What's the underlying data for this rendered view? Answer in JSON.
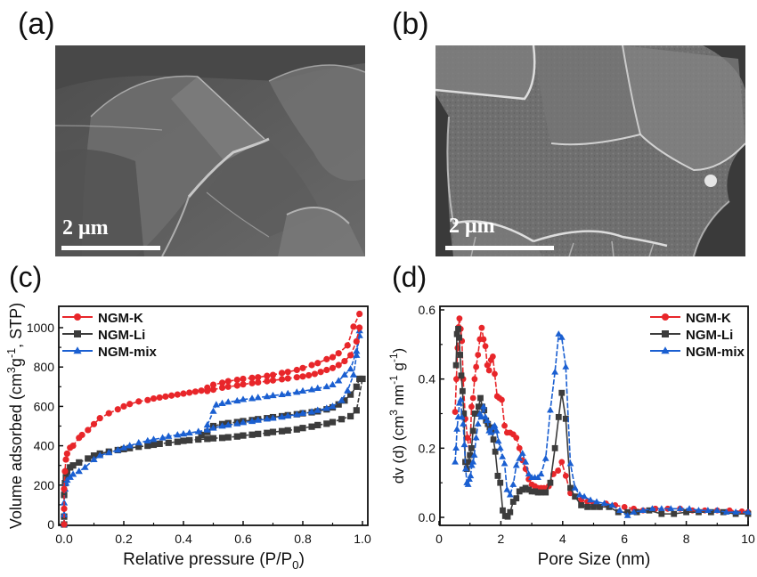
{
  "figure": {
    "panels": [
      {
        "label": "(a)",
        "type": "SEM image",
        "scale_bar": "2 μm"
      },
      {
        "label": "(b)",
        "type": "SEM image",
        "scale_bar": "2 μm"
      },
      {
        "label": "(c)",
        "type": "chart"
      },
      {
        "label": "(d)",
        "type": "chart"
      }
    ]
  },
  "colors": {
    "NGM-K": "#e8262a",
    "NGM-Li": "#3c3c3c",
    "NGM-mix": "#1a5fd1"
  },
  "chart_data": [
    {
      "panel": "(c)",
      "type": "scatter",
      "title": "",
      "xlabel": "Relative pressure (P/P0)",
      "ylabel": "Volume adsorbed (cm3g-1, STP)",
      "xlim": [
        -0.02,
        1.02
      ],
      "ylim": [
        0,
        1100
      ],
      "xticks": [
        0.0,
        0.2,
        0.4,
        0.6,
        0.8,
        1.0
      ],
      "xtick_labels": [
        "0.0",
        "0.2",
        "0.4",
        "0.6",
        "0.8",
        "1.0"
      ],
      "yticks": [
        0,
        200,
        400,
        600,
        800,
        1000
      ],
      "ytick_labels": [
        "0",
        "200",
        "400",
        "600",
        "800",
        "1000"
      ],
      "grid": false,
      "legend_position": "top-left",
      "series": [
        {
          "name": "NGM-K",
          "marker": "circle",
          "adsorption": {
            "x": [
              0.0,
              0.0,
              0.0,
              0.003,
              0.006,
              0.01,
              0.02,
              0.03,
              0.05,
              0.06,
              0.08,
              0.1,
              0.12,
              0.15,
              0.18,
              0.2,
              0.22,
              0.25,
              0.28,
              0.3,
              0.32,
              0.34,
              0.36,
              0.38,
              0.4,
              0.42,
              0.44,
              0.46,
              0.48,
              0.5,
              0.53,
              0.55,
              0.58,
              0.6,
              0.63,
              0.65,
              0.68,
              0.7,
              0.73,
              0.75,
              0.78,
              0.8,
              0.83,
              0.85,
              0.88,
              0.9,
              0.92,
              0.95,
              0.97,
              0.99
            ],
            "y": [
              0,
              80,
              180,
              270,
              330,
              360,
              390,
              400,
              440,
              455,
              480,
              510,
              540,
              565,
              585,
              600,
              612,
              625,
              632,
              640,
              645,
              650,
              655,
              660,
              665,
              670,
              675,
              680,
              695,
              710,
              720,
              728,
              735,
              740,
              745,
              748,
              755,
              760,
              770,
              775,
              785,
              795,
              810,
              820,
              840,
              850,
              870,
              910,
              1005,
              1070
            ]
          },
          "desorption": {
            "x": [
              0.99,
              0.98,
              0.96,
              0.94,
              0.92,
              0.9,
              0.88,
              0.86,
              0.84,
              0.82,
              0.8,
              0.78,
              0.75,
              0.73,
              0.7,
              0.68,
              0.65,
              0.63,
              0.6,
              0.58,
              0.55,
              0.53,
              0.5,
              0.48
            ],
            "y": [
              1000,
              930,
              860,
              830,
              810,
              795,
              785,
              775,
              765,
              758,
              752,
              748,
              742,
              738,
              732,
              728,
              722,
              718,
              712,
              706,
              700,
              695,
              685,
              678
            ]
          }
        },
        {
          "name": "NGM-Li",
          "marker": "square",
          "adsorption": {
            "x": [
              0.0,
              0.0,
              0.0,
              0.003,
              0.006,
              0.01,
              0.02,
              0.03,
              0.05,
              0.08,
              0.1,
              0.12,
              0.15,
              0.18,
              0.2,
              0.22,
              0.25,
              0.28,
              0.3,
              0.32,
              0.35,
              0.38,
              0.4,
              0.42,
              0.45,
              0.48,
              0.5,
              0.53,
              0.55,
              0.58,
              0.6,
              0.63,
              0.65,
              0.68,
              0.7,
              0.73,
              0.75,
              0.78,
              0.8,
              0.83,
              0.85,
              0.88,
              0.9,
              0.93,
              0.96,
              0.98,
              1.0
            ],
            "y": [
              0,
              40,
              150,
              210,
              240,
              270,
              290,
              300,
              315,
              335,
              350,
              360,
              370,
              378,
              383,
              388,
              395,
              400,
              405,
              410,
              415,
              420,
              425,
              428,
              432,
              435,
              438,
              440,
              443,
              447,
              452,
              456,
              460,
              465,
              470,
              474,
              478,
              483,
              490,
              497,
              505,
              512,
              520,
              535,
              550,
              580,
              740
            ]
          },
          "desorption": {
            "x": [
              0.99,
              0.98,
              0.96,
              0.94,
              0.92,
              0.9,
              0.88,
              0.85,
              0.83,
              0.8,
              0.78,
              0.75,
              0.73,
              0.7,
              0.68,
              0.65,
              0.63,
              0.6,
              0.58,
              0.55,
              0.53,
              0.5,
              0.48,
              0.46
            ],
            "y": [
              740,
              700,
              660,
              630,
              610,
              595,
              585,
              575,
              570,
              565,
              560,
              555,
              550,
              545,
              540,
              535,
              530,
              525,
              520,
              515,
              510,
              500,
              470,
              455
            ]
          }
        },
        {
          "name": "NGM-mix",
          "marker": "triangle",
          "adsorption": {
            "x": [
              0.0,
              0.0,
              0.0,
              0.003,
              0.006,
              0.01,
              0.02,
              0.03,
              0.05,
              0.07,
              0.1,
              0.12,
              0.15,
              0.18,
              0.2,
              0.22,
              0.25,
              0.28,
              0.3,
              0.33,
              0.35,
              0.38,
              0.4,
              0.42,
              0.45,
              0.48,
              0.5,
              0.53,
              0.55,
              0.58,
              0.6,
              0.63,
              0.65,
              0.68,
              0.7,
              0.73,
              0.75,
              0.78,
              0.8,
              0.83,
              0.85,
              0.88,
              0.9,
              0.93,
              0.95,
              0.97,
              0.98,
              0.99
            ],
            "y": [
              0,
              50,
              110,
              180,
              210,
              225,
              240,
              255,
              270,
              290,
              330,
              350,
              365,
              378,
              390,
              400,
              415,
              425,
              432,
              440,
              448,
              455,
              460,
              465,
              472,
              480,
              490,
              500,
              505,
              512,
              518,
              524,
              530,
              536,
              540,
              546,
              552,
              558,
              565,
              572,
              580,
              590,
              600,
              630,
              680,
              760,
              860,
              960
            ]
          },
          "desorption": {
            "x": [
              0.99,
              0.98,
              0.96,
              0.94,
              0.92,
              0.9,
              0.88,
              0.85,
              0.83,
              0.8,
              0.78,
              0.75,
              0.73,
              0.7,
              0.68,
              0.65,
              0.63,
              0.6,
              0.58,
              0.55,
              0.53,
              0.51,
              0.5,
              0.48
            ],
            "y": [
              985,
              880,
              790,
              760,
              730,
              710,
              700,
              692,
              685,
              678,
              672,
              665,
              660,
              655,
              650,
              645,
              640,
              635,
              628,
              622,
              615,
              608,
              575,
              505
            ]
          }
        }
      ]
    },
    {
      "panel": "(d)",
      "type": "line",
      "title": "",
      "xlabel": "Pore Size (nm)",
      "ylabel": "dv (d) (cm3 nm-1 g-1)",
      "xlim": [
        0,
        10
      ],
      "ylim": [
        -0.015,
        0.61
      ],
      "xticks": [
        0,
        2,
        4,
        6,
        8,
        10
      ],
      "xtick_labels": [
        "0",
        "2",
        "4",
        "6",
        "8",
        "10"
      ],
      "yticks": [
        0.0,
        0.2,
        0.4,
        0.6
      ],
      "ytick_labels": [
        "0.0",
        "0.2",
        "0.4",
        "0.6"
      ],
      "grid": false,
      "legend_position": "top-right",
      "series": [
        {
          "name": "NGM-K",
          "marker": "circle",
          "x": [
            0.52,
            0.56,
            0.6,
            0.63,
            0.66,
            0.7,
            0.74,
            0.78,
            0.85,
            0.92,
            1.0,
            1.05,
            1.1,
            1.15,
            1.2,
            1.26,
            1.32,
            1.38,
            1.44,
            1.5,
            1.56,
            1.62,
            1.68,
            1.74,
            1.8,
            1.88,
            1.95,
            2.03,
            2.12,
            2.2,
            2.3,
            2.4,
            2.5,
            2.6,
            2.7,
            2.8,
            2.9,
            3.0,
            3.1,
            3.2,
            3.3,
            3.4,
            3.55,
            3.7,
            3.85,
            3.97,
            4.1,
            4.25,
            4.4,
            4.6,
            4.8,
            5.0,
            5.2,
            5.4,
            5.7,
            6.0,
            6.3,
            6.6,
            7.0,
            7.4,
            7.8,
            8.2,
            8.6,
            9.0,
            9.4,
            9.8,
            10.0
          ],
          "y": [
            0.305,
            0.4,
            0.49,
            0.55,
            0.575,
            0.545,
            0.51,
            0.4,
            0.285,
            0.23,
            0.18,
            0.32,
            0.345,
            0.4,
            0.435,
            0.47,
            0.515,
            0.548,
            0.515,
            0.495,
            0.44,
            0.425,
            0.455,
            0.465,
            0.415,
            0.35,
            0.345,
            0.34,
            0.265,
            0.245,
            0.245,
            0.24,
            0.23,
            0.2,
            0.165,
            0.14,
            0.11,
            0.095,
            0.09,
            0.085,
            0.085,
            0.085,
            0.09,
            0.125,
            0.135,
            0.16,
            0.12,
            0.07,
            0.06,
            0.05,
            0.045,
            0.04,
            0.03,
            0.04,
            0.035,
            0.03,
            0.025,
            0.02,
            0.025,
            0.025,
            0.025,
            0.02,
            0.02,
            0.02,
            0.02,
            0.017,
            0.015
          ]
        },
        {
          "name": "NGM-Li",
          "marker": "square",
          "x": [
            0.55,
            0.58,
            0.62,
            0.65,
            0.68,
            0.72,
            0.76,
            0.8,
            0.85,
            0.9,
            0.95,
            1.0,
            1.05,
            1.1,
            1.16,
            1.22,
            1.28,
            1.34,
            1.4,
            1.46,
            1.52,
            1.58,
            1.64,
            1.7,
            1.76,
            1.82,
            1.9,
            1.98,
            2.06,
            2.14,
            2.22,
            2.3,
            2.4,
            2.5,
            2.6,
            2.7,
            2.8,
            2.9,
            3.0,
            3.1,
            3.2,
            3.3,
            3.45,
            3.6,
            3.75,
            3.87,
            3.97,
            4.1,
            4.25,
            4.4,
            4.6,
            4.8,
            5.0,
            5.2,
            5.5,
            5.8,
            6.1,
            6.4,
            6.8,
            7.2,
            7.6,
            8.0,
            8.4,
            8.8,
            9.2,
            9.6,
            10.0
          ],
          "y": [
            0.44,
            0.53,
            0.545,
            0.52,
            0.47,
            0.41,
            0.365,
            0.3,
            0.16,
            0.14,
            0.16,
            0.18,
            0.2,
            0.25,
            0.3,
            0.3,
            0.32,
            0.345,
            0.32,
            0.31,
            0.28,
            0.27,
            0.26,
            0.25,
            0.225,
            0.19,
            0.12,
            0.1,
            0.02,
            0.004,
            0.002,
            0.015,
            0.045,
            0.055,
            0.075,
            0.08,
            0.085,
            0.08,
            0.075,
            0.075,
            0.072,
            0.072,
            0.072,
            0.1,
            0.2,
            0.29,
            0.36,
            0.285,
            0.085,
            0.06,
            0.035,
            0.03,
            0.03,
            0.03,
            0.03,
            0.015,
            0.015,
            0.015,
            0.02,
            0.01,
            0.01,
            0.015,
            0.015,
            0.015,
            0.015,
            0.01,
            0.01
          ]
        },
        {
          "name": "NGM-mix",
          "marker": "triangle",
          "x": [
            0.52,
            0.55,
            0.58,
            0.62,
            0.66,
            0.7,
            0.74,
            0.78,
            0.82,
            0.86,
            0.9,
            0.94,
            0.98,
            1.02,
            1.06,
            1.1,
            1.14,
            1.2,
            1.26,
            1.32,
            1.38,
            1.44,
            1.5,
            1.56,
            1.62,
            1.68,
            1.74,
            1.8,
            1.86,
            1.92,
            1.98,
            2.05,
            2.12,
            2.2,
            2.3,
            2.4,
            2.5,
            2.6,
            2.7,
            2.8,
            2.9,
            3.0,
            3.1,
            3.2,
            3.3,
            3.45,
            3.6,
            3.75,
            3.87,
            3.97,
            4.1,
            4.25,
            4.4,
            4.55,
            4.7,
            4.9,
            5.1,
            5.35,
            5.6,
            5.85,
            6.1,
            6.3,
            6.6,
            6.9,
            7.2,
            7.5,
            7.8,
            8.1,
            8.4,
            8.7,
            9.0,
            9.3,
            9.6,
            10.0
          ],
          "y": [
            0.16,
            0.2,
            0.255,
            0.29,
            0.33,
            0.34,
            0.29,
            0.27,
            0.21,
            0.14,
            0.1,
            0.095,
            0.11,
            0.12,
            0.15,
            0.16,
            0.18,
            0.23,
            0.27,
            0.3,
            0.29,
            0.32,
            0.29,
            0.28,
            0.25,
            0.245,
            0.26,
            0.265,
            0.25,
            0.22,
            0.2,
            0.175,
            0.155,
            0.08,
            0.065,
            0.095,
            0.15,
            0.17,
            0.185,
            0.16,
            0.125,
            0.115,
            0.115,
            0.115,
            0.125,
            0.17,
            0.31,
            0.42,
            0.53,
            0.52,
            0.435,
            0.155,
            0.085,
            0.065,
            0.06,
            0.05,
            0.045,
            0.04,
            0.035,
            0.02,
            0.005,
            0.015,
            0.02,
            0.025,
            0.025,
            0.025,
            0.025,
            0.025,
            0.02,
            0.02,
            0.02,
            0.015,
            0.015,
            0.015
          ]
        }
      ]
    }
  ]
}
